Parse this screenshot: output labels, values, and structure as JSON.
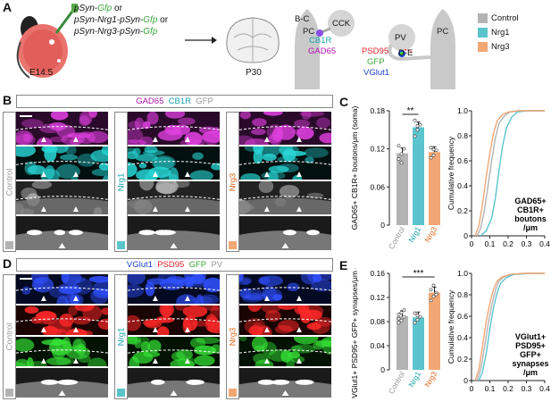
{
  "panels": {
    "A": "A",
    "B": "B",
    "C": "C",
    "D": "D",
    "E": "E"
  },
  "panelA": {
    "line1_prefix": "pSyn-",
    "line1_gfp": "Gfp",
    "line1_suffix": " or",
    "line2_a": "pSyn-Nrg1-pSyn-",
    "line2_gfp": "Gfp",
    "line2_suffix": " or",
    "line3_a": "pSyn-Nrg3-pSyn-",
    "line3_gfp": "Gfp",
    "age_start": "E14.5",
    "age_end": "P30",
    "pc": "PC",
    "cck": "CCK",
    "pv": "PV",
    "bc": "B-C",
    "de": "D-E",
    "cb1r": "CB1R",
    "gad65": "GAD65",
    "psd95": "PSD95",
    "gfp": "GFP",
    "vglut1": "VGlut1"
  },
  "legend": [
    {
      "label": "Control",
      "color": "#b3b3b3"
    },
    {
      "label": "Nrg1",
      "color": "#5bc4cc"
    },
    {
      "label": "Nrg3",
      "color": "#f2a774"
    }
  ],
  "panelB": {
    "gad65": "GAD65",
    "cb1r": "CB1R",
    "gfp": "GFP",
    "control": "Control",
    "nrg1": "Nrg1",
    "nrg3": "Nrg3"
  },
  "panelD": {
    "vglut1": "VGlut1",
    "psd95": "PSD95",
    "gfp": "GFP",
    "pv": "PV",
    "control": "Control",
    "nrg1": "Nrg1",
    "nrg3": "Nrg3"
  },
  "chart_data": [
    {
      "type": "bar",
      "id": "C-bar",
      "ylabel": "GAD65+ CB1R+ boutons/μm (soma)",
      "categories": [
        "Control",
        "Nrg1",
        "Nrg3"
      ],
      "values": [
        0.113,
        0.154,
        0.115
      ],
      "points": [
        [
          0.104,
          0.098,
          0.12,
          0.125,
          0.112
        ],
        [
          0.14,
          0.15,
          0.158,
          0.165,
          0.156
        ],
        [
          0.106,
          0.11,
          0.118,
          0.122,
          0.119
        ]
      ],
      "ylim": [
        0,
        0.18
      ],
      "yticks": [
        "0",
        "0.06",
        "0.12",
        "0.18"
      ],
      "significance": "**"
    },
    {
      "type": "line",
      "id": "C-cdf",
      "ylabel": "Cumulative frequency",
      "xticks": [
        "0",
        "0.1",
        "0.2",
        "0.3",
        "0.4"
      ],
      "yticks": [
        "0",
        "0.2",
        "0.4",
        "0.6",
        "0.8",
        "1.0"
      ],
      "xlim": [
        0,
        0.4
      ],
      "ylim": [
        0,
        1
      ],
      "annotation": [
        "GAD65+",
        "CB1R+",
        "boutons",
        "/μm"
      ],
      "series": [
        {
          "name": "Control",
          "x": [
            0.03,
            0.05,
            0.07,
            0.09,
            0.11,
            0.13,
            0.15,
            0.18,
            0.21,
            0.26
          ],
          "y": [
            0,
            0.06,
            0.2,
            0.4,
            0.6,
            0.78,
            0.9,
            0.96,
            0.99,
            1
          ]
        },
        {
          "name": "Nrg1",
          "x": [
            0.05,
            0.08,
            0.11,
            0.13,
            0.15,
            0.17,
            0.19,
            0.22,
            0.25,
            0.3
          ],
          "y": [
            0,
            0.04,
            0.14,
            0.3,
            0.52,
            0.72,
            0.86,
            0.95,
            0.99,
            1
          ]
        },
        {
          "name": "Nrg3",
          "x": [
            0.02,
            0.04,
            0.06,
            0.08,
            0.1,
            0.12,
            0.14,
            0.17,
            0.2,
            0.25
          ],
          "y": [
            0,
            0.08,
            0.25,
            0.47,
            0.66,
            0.82,
            0.92,
            0.97,
            0.99,
            1
          ]
        }
      ]
    },
    {
      "type": "bar",
      "id": "E-bar",
      "ylabel": "VGlut1+ PSD95+ GFP+ synapses/μm (soma)",
      "categories": [
        "Control",
        "Nrg1",
        "Nrg3"
      ],
      "values": [
        0.089,
        0.087,
        0.128
      ],
      "points": [
        [
          0.078,
          0.082,
          0.088,
          0.092,
          0.095,
          0.099,
          0.085
        ],
        [
          0.078,
          0.083,
          0.088,
          0.094,
          0.09
        ],
        [
          0.115,
          0.122,
          0.128,
          0.133,
          0.14,
          0.125
        ]
      ],
      "ylim": [
        0,
        0.16
      ],
      "yticks": [
        "0",
        "0.04",
        "0.08",
        "0.12",
        "0.16"
      ],
      "significance": "***"
    },
    {
      "type": "line",
      "id": "E-cdf",
      "ylabel": "Cumulative frequency",
      "xticks": [
        "0",
        "0.1",
        "0.2",
        "0.3",
        "0.4"
      ],
      "yticks": [
        "0",
        "0.2",
        "0.4",
        "0.6",
        "0.8",
        "1.0"
      ],
      "xlim": [
        0,
        0.4
      ],
      "ylim": [
        0,
        1
      ],
      "annotation": [
        "VGlut1+",
        "PSD95+",
        "GFP+",
        "synapses",
        "/μm"
      ],
      "series": [
        {
          "name": "Control",
          "x": [
            0.03,
            0.05,
            0.07,
            0.09,
            0.11,
            0.13,
            0.15,
            0.18,
            0.22,
            0.3
          ],
          "y": [
            0,
            0.1,
            0.3,
            0.52,
            0.7,
            0.84,
            0.93,
            0.97,
            0.99,
            1
          ]
        },
        {
          "name": "Nrg1",
          "x": [
            0.04,
            0.06,
            0.08,
            0.1,
            0.12,
            0.14,
            0.16,
            0.19,
            0.23,
            0.32
          ],
          "y": [
            0,
            0.08,
            0.25,
            0.48,
            0.68,
            0.82,
            0.91,
            0.96,
            0.99,
            1
          ]
        },
        {
          "name": "Nrg3",
          "x": [
            0.02,
            0.04,
            0.06,
            0.08,
            0.1,
            0.12,
            0.14,
            0.17,
            0.21,
            0.28
          ],
          "y": [
            0,
            0.1,
            0.32,
            0.55,
            0.72,
            0.85,
            0.93,
            0.97,
            0.99,
            1
          ]
        }
      ]
    }
  ]
}
